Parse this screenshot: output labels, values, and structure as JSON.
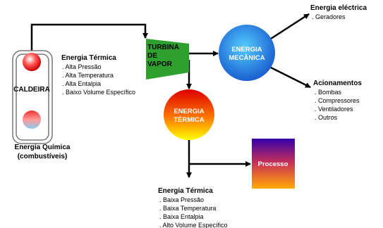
{
  "boiler": {
    "label": "CALDEIRA",
    "source_title": "Energia Química",
    "source_subtitle": "(combustíveis)"
  },
  "thermal_high": {
    "title": "Energia Térmica",
    "items": [
      ". Alta Pressão",
      ". Alta Temperatura",
      ". Alta Entalpia",
      ". Baixo Volume Específico"
    ]
  },
  "turbine": {
    "lines": [
      "TURBINA",
      "DE",
      "VAPOR"
    ]
  },
  "mechanical": {
    "lines": [
      "ENERGIA",
      "MECÂNICA"
    ]
  },
  "electric": {
    "title": "Energia eléctrica",
    "items": [
      ". Geradores"
    ]
  },
  "drives": {
    "title": "Acionamentos",
    "items": [
      ". Bombas",
      ". Compressores",
      ". Ventiladores",
      ". Outros"
    ]
  },
  "thermal_node": {
    "lines": [
      "ENERGIA",
      "TÉRMICA"
    ]
  },
  "process": {
    "label": "Processo"
  },
  "thermal_low": {
    "title": "Energia Térmica",
    "items": [
      ". Baixa Pressão",
      ". Baixa Temperatura",
      ". Baixa Entalpia",
      ". Alto Volume Específico"
    ]
  }
}
